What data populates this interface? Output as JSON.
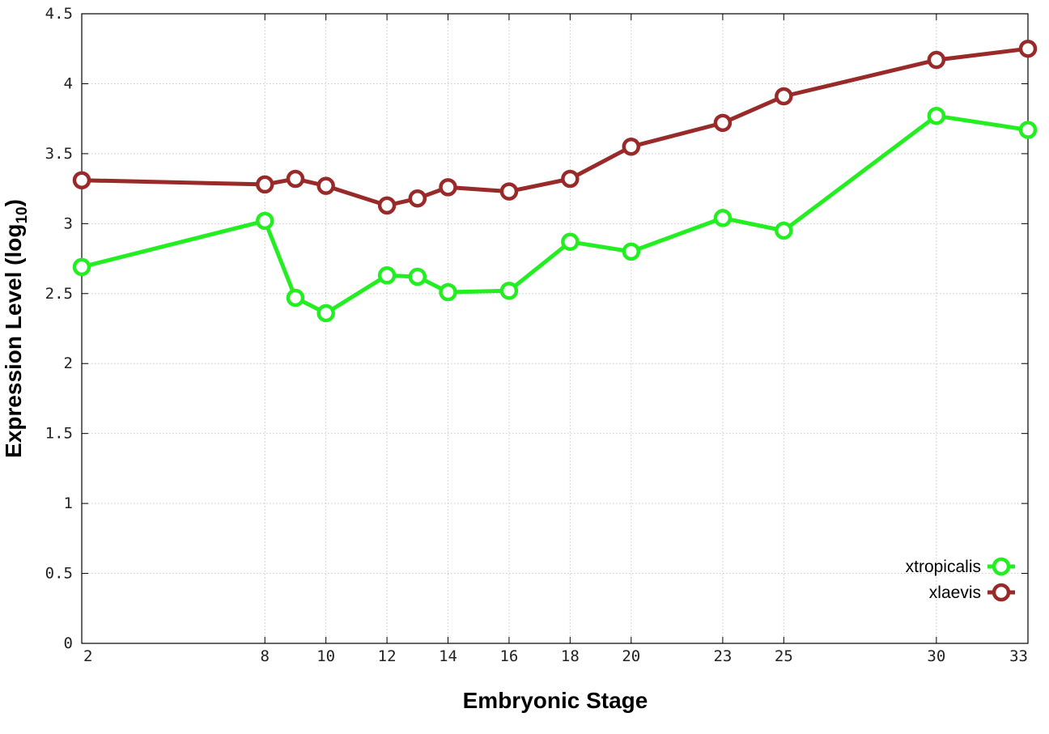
{
  "chart_data": {
    "type": "line",
    "xlabel": "Embryonic Stage",
    "ylabel_main": "Expression Level (log",
    "ylabel_sub": "10",
    "ylabel_close": ")",
    "x_ticks": [
      2,
      8,
      10,
      12,
      14,
      16,
      18,
      20,
      23,
      25,
      30,
      33
    ],
    "x_tick_labels": [
      "2",
      "8",
      "10",
      "12",
      "14",
      "16",
      "18",
      "20",
      "23",
      "25",
      "30",
      "33"
    ],
    "y_ticks": [
      0,
      0.5,
      1,
      1.5,
      2,
      2.5,
      3,
      3.5,
      4,
      4.5
    ],
    "y_tick_labels": [
      "0",
      "0.5",
      "1",
      "1.5",
      "2",
      "2.5",
      "3",
      "3.5",
      "4",
      "4.5"
    ],
    "ylim": [
      0,
      4.5
    ],
    "grid": true,
    "legend_position": "bottom-right",
    "series": [
      {
        "name": "xtropicalis",
        "color": "#22ee22",
        "x": [
          2,
          8,
          9,
          10,
          12,
          13,
          14,
          16,
          18,
          20,
          23,
          25,
          30,
          33
        ],
        "values": [
          2.69,
          3.02,
          2.47,
          2.36,
          2.63,
          2.62,
          2.51,
          2.52,
          2.87,
          2.8,
          3.04,
          2.95,
          3.77,
          3.67
        ]
      },
      {
        "name": "xlaevis",
        "color": "#992a2a",
        "x": [
          2,
          8,
          9,
          10,
          12,
          13,
          14,
          16,
          18,
          20,
          23,
          25,
          30,
          33
        ],
        "values": [
          3.31,
          3.28,
          3.32,
          3.27,
          3.13,
          3.18,
          3.26,
          3.23,
          3.32,
          3.55,
          3.72,
          3.91,
          4.17,
          4.25
        ]
      }
    ]
  }
}
